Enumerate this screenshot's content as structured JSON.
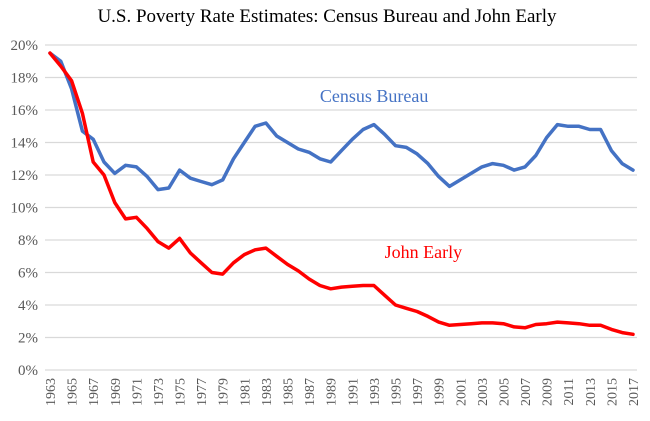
{
  "chart_data": {
    "type": "line",
    "title": "U.S. Poverty Rate Estimates: Census Bureau and John Early",
    "xlabel": "",
    "ylabel": "",
    "ylim": [
      0,
      20
    ],
    "yticks": [
      "0%",
      "2%",
      "4%",
      "6%",
      "8%",
      "10%",
      "12%",
      "14%",
      "16%",
      "18%",
      "20%"
    ],
    "ytick_values": [
      0,
      2,
      4,
      6,
      8,
      10,
      12,
      14,
      16,
      18,
      20
    ],
    "xticks": [
      "1963",
      "1965",
      "1967",
      "1969",
      "1971",
      "1973",
      "1975",
      "1977",
      "1979",
      "1981",
      "1983",
      "1985",
      "1987",
      "1989",
      "1991",
      "1993",
      "1995",
      "1997",
      "1999",
      "2001",
      "2003",
      "2005",
      "2007",
      "2009",
      "2011",
      "2013",
      "2015",
      "2017"
    ],
    "x": [
      1963,
      1964,
      1965,
      1966,
      1967,
      1968,
      1969,
      1970,
      1971,
      1972,
      1973,
      1974,
      1975,
      1976,
      1977,
      1978,
      1979,
      1980,
      1981,
      1982,
      1983,
      1984,
      1985,
      1986,
      1987,
      1988,
      1989,
      1990,
      1991,
      1992,
      1993,
      1994,
      1995,
      1996,
      1997,
      1998,
      1999,
      2000,
      2001,
      2002,
      2003,
      2004,
      2005,
      2006,
      2007,
      2008,
      2009,
      2010,
      2011,
      2012,
      2013,
      2014,
      2015,
      2016,
      2017
    ],
    "grid": true,
    "legend": "inline-labels",
    "series": [
      {
        "name": "Census Bureau",
        "color": "#4472c4",
        "values": [
          19.5,
          19.0,
          17.3,
          14.7,
          14.2,
          12.8,
          12.1,
          12.6,
          12.5,
          11.9,
          11.1,
          11.2,
          12.3,
          11.8,
          11.6,
          11.4,
          11.7,
          13.0,
          14.0,
          15.0,
          15.2,
          14.4,
          14.0,
          13.6,
          13.4,
          13.0,
          12.8,
          13.5,
          14.2,
          14.8,
          15.1,
          14.5,
          13.8,
          13.7,
          13.3,
          12.7,
          11.9,
          11.3,
          11.7,
          12.1,
          12.5,
          12.7,
          12.6,
          12.3,
          12.5,
          13.2,
          14.3,
          15.1,
          15.0,
          15.0,
          14.8,
          14.8,
          13.5,
          12.7,
          12.3
        ]
      },
      {
        "name": "John Early",
        "color": "#ff0000",
        "values": [
          19.5,
          18.7,
          17.8,
          15.8,
          12.8,
          12.0,
          10.3,
          9.3,
          9.4,
          8.7,
          7.9,
          7.5,
          8.1,
          7.2,
          6.6,
          6.0,
          5.9,
          6.6,
          7.1,
          7.4,
          7.5,
          7.0,
          6.5,
          6.1,
          5.6,
          5.2,
          5.0,
          5.1,
          5.15,
          5.2,
          5.2,
          4.6,
          4.0,
          3.8,
          3.6,
          3.3,
          2.95,
          2.75,
          2.8,
          2.85,
          2.9,
          2.9,
          2.85,
          2.65,
          2.6,
          2.8,
          2.85,
          2.95,
          2.9,
          2.85,
          2.75,
          2.75,
          2.5,
          2.3,
          2.2
        ]
      }
    ],
    "annotations": [
      {
        "text": "Census Bureau",
        "series": "Census Bureau",
        "x": 1988,
        "y": 16.5
      },
      {
        "text": "John Early",
        "series": "John Early",
        "x": 1994,
        "y": 6.9
      }
    ]
  }
}
